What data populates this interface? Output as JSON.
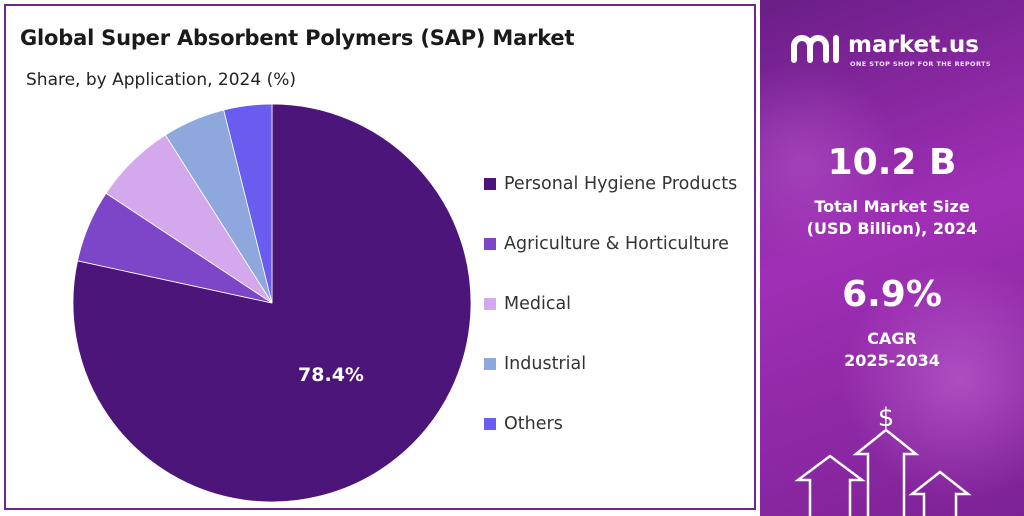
{
  "left": {
    "title": "Global Super Absorbent Polymers (SAP) Market",
    "subtitle": "Share, by Application, 2024 (%)"
  },
  "chart_data": {
    "type": "pie",
    "categories": [
      "Personal Hygiene Products",
      "Agriculture & Horticulture",
      "Medical",
      "Industrial",
      "Others"
    ],
    "values": [
      78.4,
      5.9,
      6.7,
      5.1,
      3.9
    ],
    "colors": [
      "#4b1579",
      "#7d45c8",
      "#d4a8ec",
      "#8ea8de",
      "#6b5cf0"
    ],
    "data_labels": [
      "78.4%",
      "",
      "",
      "",
      ""
    ],
    "start": "12 o'clock",
    "direction": "clockwise",
    "legend_position": "right"
  },
  "right": {
    "logo_text": "market.us",
    "logo_tagline": "ONE STOP SHOP FOR THE REPORTS",
    "market_size_value": "10.2 B",
    "market_size_label_1": "Total Market Size",
    "market_size_label_2": "(USD Billion), 2024",
    "cagr_value": "6.9%",
    "cagr_label_1": "CAGR",
    "cagr_label_2": "2025-2034",
    "dollar_symbol": "$",
    "icons": [
      "logo-icon",
      "dollar-icon",
      "arrow-up-icon"
    ]
  }
}
